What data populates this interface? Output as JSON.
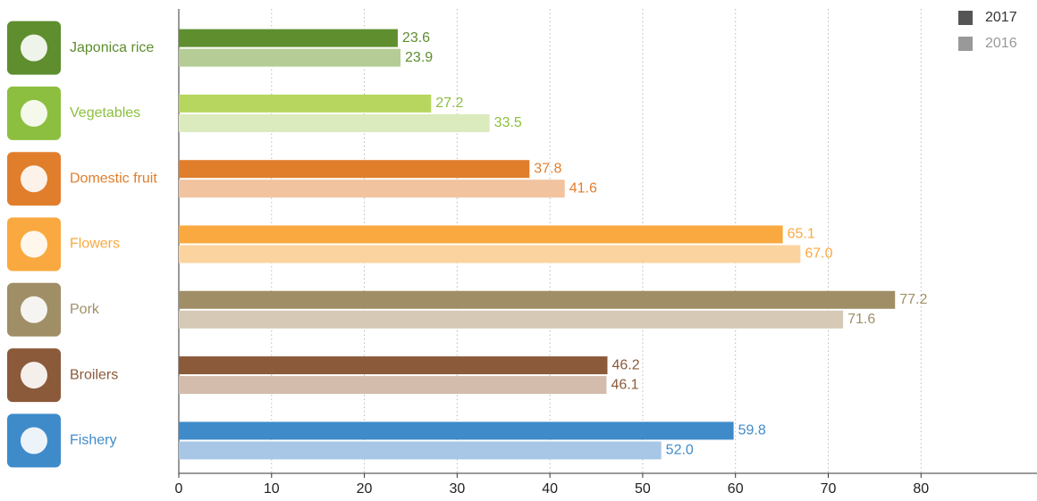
{
  "chart_data": {
    "type": "bar",
    "orientation": "horizontal",
    "categories": [
      "Japonica rice",
      "Vegetables",
      "Domestic fruit",
      "Flowers",
      "Pork",
      "Broilers",
      "Fishery"
    ],
    "category_colors": [
      "#5e8e2e",
      "#8cbf3f",
      "#e07e2c",
      "#f9a93f",
      "#a08e66",
      "#8b5a3a",
      "#3f8bca"
    ],
    "series": [
      {
        "name": "2017",
        "color": "#555555",
        "colors": [
          "#5e8e2e",
          "#b6d660",
          "#e07e2c",
          "#f9a93f",
          "#a08e66",
          "#8b5a3a",
          "#3f8bca"
        ],
        "values": [
          23.6,
          27.2,
          37.8,
          65.1,
          77.2,
          46.2,
          59.8
        ]
      },
      {
        "name": "2016",
        "color": "#999999",
        "colors": [
          "#b5cc97",
          "#dcebbd",
          "#f2c39f",
          "#fbd39f",
          "#d6cab7",
          "#d4bcad",
          "#a8c6e6"
        ],
        "values": [
          23.9,
          33.5,
          41.6,
          67.0,
          71.6,
          46.1,
          52.0
        ],
        "value_labels": [
          "23.9",
          "33.5",
          "41.6",
          "67.0",
          "71.6",
          "46.1",
          "52.0"
        ]
      }
    ],
    "xlim": [
      0,
      92.5
    ],
    "xticks": [
      0,
      10,
      20,
      30,
      40,
      50,
      60,
      70,
      80
    ],
    "grid": true,
    "legend": "top-right"
  }
}
